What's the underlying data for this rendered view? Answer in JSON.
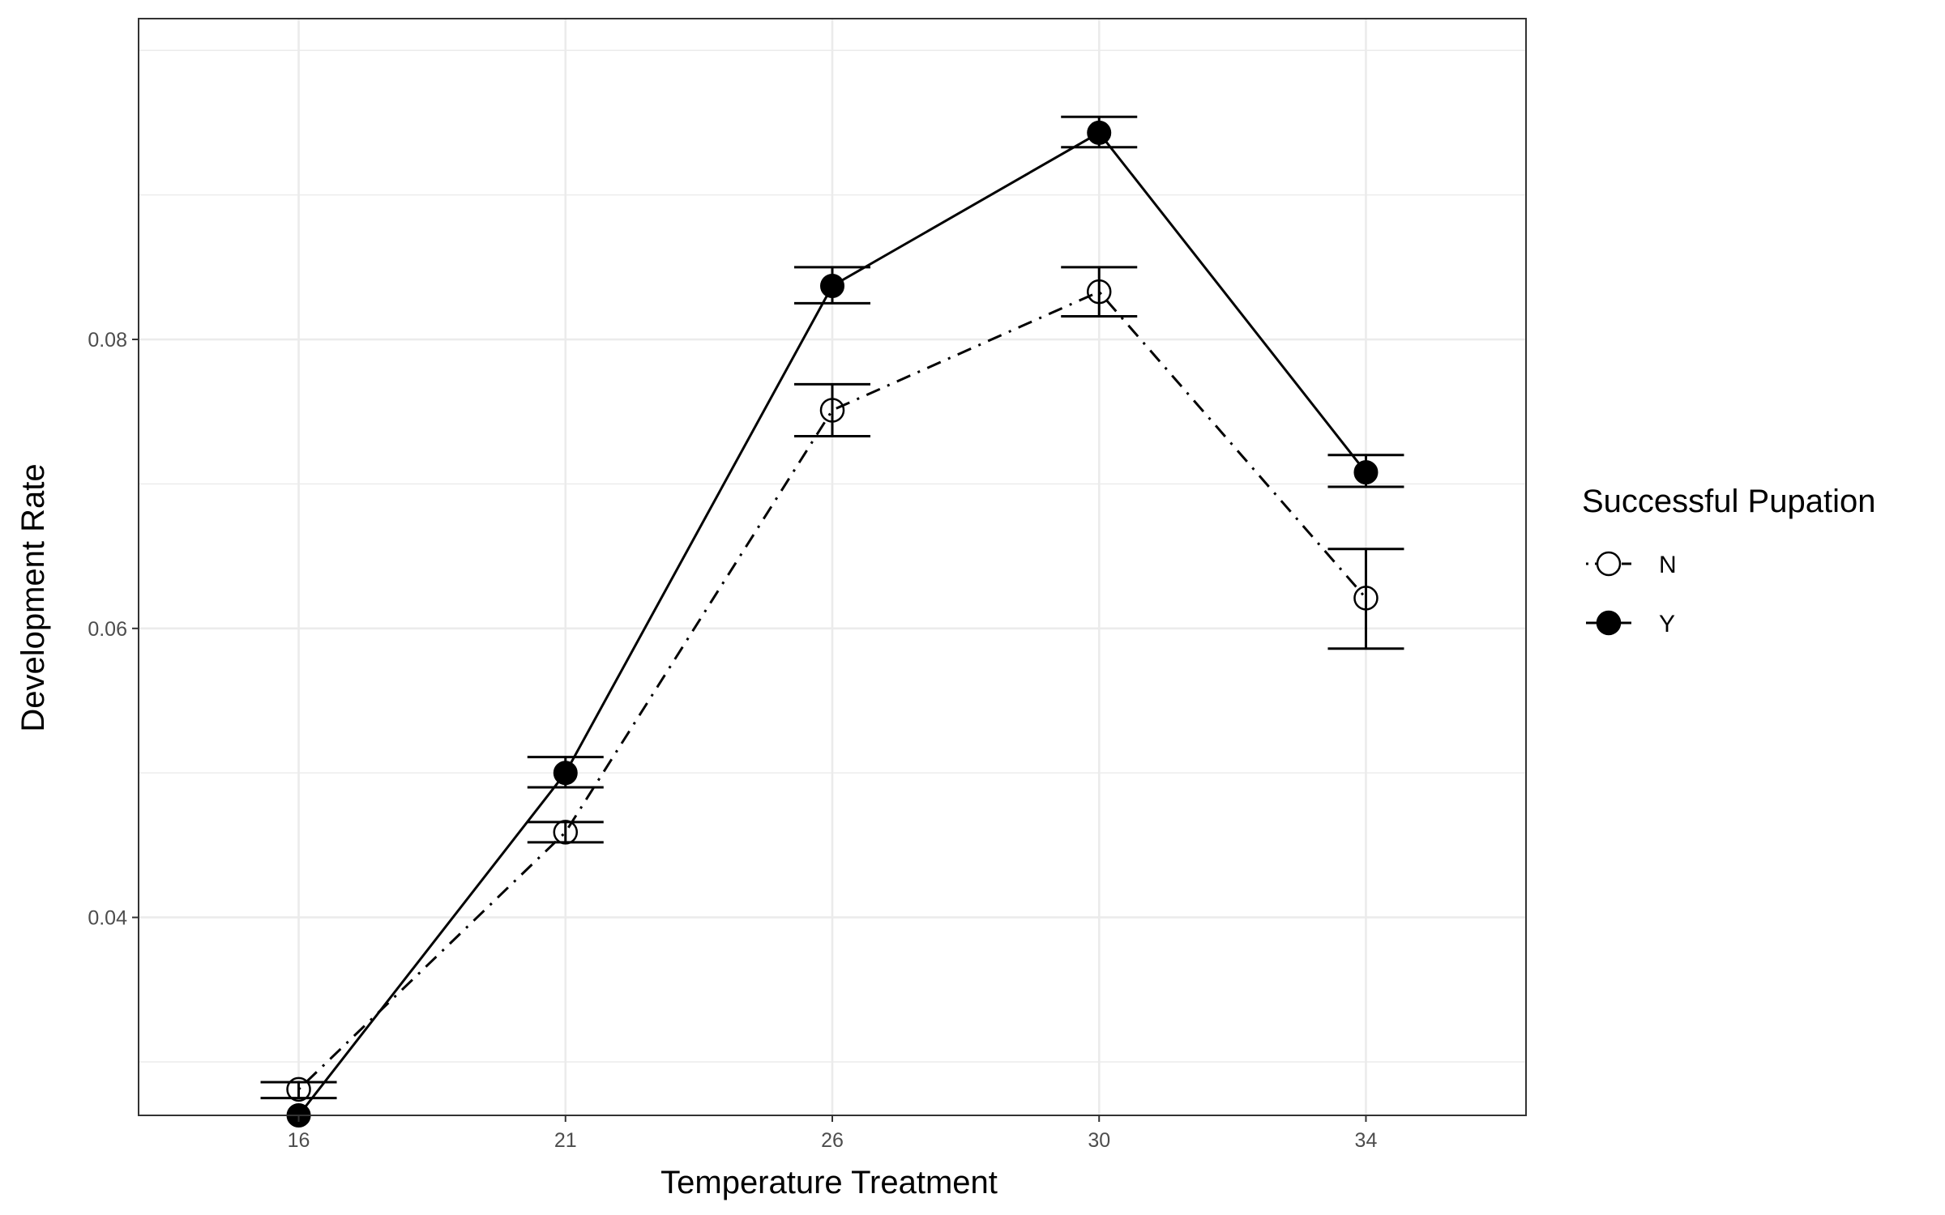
{
  "chart_data": {
    "type": "line",
    "title": "",
    "xlabel": "Temperature Treatment",
    "ylabel": "Development Rate",
    "categories": [
      "16",
      "21",
      "26",
      "30",
      "34"
    ],
    "yticks": [
      "0.04",
      "0.06",
      "0.08"
    ],
    "ylim": [
      0.0263,
      0.1022
    ],
    "grid": true,
    "legend": {
      "title": "Successful Pupation",
      "placement": "right"
    },
    "series": [
      {
        "name": "N",
        "line_style": "dot-dash",
        "marker": "open-circle",
        "values": [
          0.0281,
          0.0459,
          0.0751,
          0.0833,
          0.0621
        ],
        "error_low": [
          0.0275,
          0.0452,
          0.0733,
          0.0816,
          0.0586
        ],
        "error_high": [
          0.0286,
          0.0466,
          0.0769,
          0.085,
          0.0655
        ]
      },
      {
        "name": "Y",
        "line_style": "solid",
        "marker": "filled-circle",
        "values": [
          0.0263,
          0.05,
          0.0837,
          0.0943,
          0.0708
        ],
        "error_low": [
          0.0263,
          0.049,
          0.0825,
          0.0933,
          0.0698
        ],
        "error_high": [
          0.0263,
          0.0511,
          0.085,
          0.0954,
          0.072
        ]
      }
    ],
    "colors": {
      "line": "#000000",
      "grid": "#ebebeb",
      "panel_border": "#333333",
      "tick_text": "#4d4d4d"
    }
  }
}
